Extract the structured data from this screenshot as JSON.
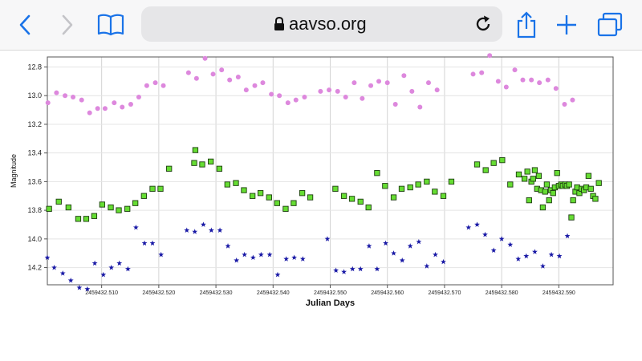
{
  "browser": {
    "url": "aavso.org",
    "icons": [
      "back-icon",
      "forward-icon",
      "bookmarks-icon",
      "lock-icon",
      "reload-icon",
      "share-icon",
      "new-tab-icon",
      "tabs-icon"
    ],
    "accent": "#1a73e8"
  },
  "chart_data": {
    "type": "scatter",
    "xlabel": "Julian Days",
    "ylabel": "Magnitude",
    "xlim": [
      2459432.5005,
      2459432.5995
    ],
    "ylim": [
      14.32,
      12.73
    ],
    "y_inverted": true,
    "grid": true,
    "x_ticks": [
      "2459432.510",
      "2459432.520",
      "2459432.530",
      "2459432.540",
      "2459432.550",
      "2459432.560",
      "2459432.570",
      "2459432.580",
      "2459432.590"
    ],
    "x_tick_values": [
      2459432.51,
      2459432.52,
      2459432.53,
      2459432.54,
      2459432.55,
      2459432.56,
      2459432.57,
      2459432.58,
      2459432.59
    ],
    "y_ticks": [
      "12.8",
      "13.0",
      "13.2",
      "13.4",
      "13.6",
      "13.8",
      "14.0",
      "14.2"
    ],
    "y_tick_values": [
      12.8,
      13.0,
      13.2,
      13.4,
      13.6,
      13.8,
      14.0,
      14.2
    ],
    "series": [
      {
        "marker": "circle",
        "color": "#dd88dd",
        "points": [
          [
            2459432.5006,
            13.05
          ],
          [
            2459432.5021,
            12.98
          ],
          [
            2459432.5036,
            13.0
          ],
          [
            2459432.505,
            13.01
          ],
          [
            2459432.5065,
            13.03
          ],
          [
            2459432.5079,
            13.12
          ],
          [
            2459432.5093,
            13.09
          ],
          [
            2459432.5106,
            13.09
          ],
          [
            2459432.5122,
            13.05
          ],
          [
            2459432.5136,
            13.08
          ],
          [
            2459432.5151,
            13.06
          ],
          [
            2459432.5165,
            13.01
          ],
          [
            2459432.5179,
            12.93
          ],
          [
            2459432.5194,
            12.91
          ],
          [
            2459432.5208,
            12.93
          ],
          [
            2459432.5252,
            12.84
          ],
          [
            2459432.5266,
            12.88
          ],
          [
            2459432.5281,
            12.74
          ],
          [
            2459432.5295,
            12.85
          ],
          [
            2459432.531,
            12.82
          ],
          [
            2459432.5324,
            12.89
          ],
          [
            2459432.5339,
            12.87
          ],
          [
            2459432.5353,
            12.96
          ],
          [
            2459432.5368,
            12.93
          ],
          [
            2459432.5382,
            12.91
          ],
          [
            2459432.5397,
            12.99
          ],
          [
            2459432.5411,
            13.0
          ],
          [
            2459432.5426,
            13.05
          ],
          [
            2459432.544,
            13.03
          ],
          [
            2459432.5455,
            13.01
          ],
          [
            2459432.5483,
            12.97
          ],
          [
            2459432.5498,
            12.96
          ],
          [
            2459432.5513,
            12.97
          ],
          [
            2459432.5527,
            13.01
          ],
          [
            2459432.5542,
            12.91
          ],
          [
            2459432.5556,
            13.02
          ],
          [
            2459432.5571,
            12.93
          ],
          [
            2459432.5585,
            12.9
          ],
          [
            2459432.56,
            12.91
          ],
          [
            2459432.5614,
            13.06
          ],
          [
            2459432.5629,
            12.86
          ],
          [
            2459432.5643,
            12.97
          ],
          [
            2459432.5657,
            13.08
          ],
          [
            2459432.5672,
            12.91
          ],
          [
            2459432.5687,
            12.96
          ],
          [
            2459432.575,
            12.85
          ],
          [
            2459432.5765,
            12.84
          ],
          [
            2459432.5779,
            12.72
          ],
          [
            2459432.5794,
            12.9
          ],
          [
            2459432.5808,
            12.94
          ],
          [
            2459432.5823,
            12.82
          ],
          [
            2459432.5837,
            12.89
          ],
          [
            2459432.5852,
            12.89
          ],
          [
            2459432.5866,
            12.91
          ],
          [
            2459432.5881,
            12.89
          ],
          [
            2459432.5895,
            12.95
          ],
          [
            2459432.591,
            13.06
          ],
          [
            2459432.5924,
            13.03
          ]
        ]
      },
      {
        "marker": "square",
        "color": "#66dd33",
        "points": [
          [
            2459432.5008,
            13.79
          ],
          [
            2459432.5025,
            13.74
          ],
          [
            2459432.5042,
            13.78
          ],
          [
            2459432.5059,
            13.86
          ],
          [
            2459432.5073,
            13.86
          ],
          [
            2459432.5087,
            13.84
          ],
          [
            2459432.5101,
            13.76
          ],
          [
            2459432.5116,
            13.78
          ],
          [
            2459432.513,
            13.8
          ],
          [
            2459432.5145,
            13.79
          ],
          [
            2459432.5159,
            13.75
          ],
          [
            2459432.5174,
            13.7
          ],
          [
            2459432.5189,
            13.65
          ],
          [
            2459432.5203,
            13.65
          ],
          [
            2459432.5218,
            13.51
          ],
          [
            2459432.5262,
            13.47
          ],
          [
            2459432.5264,
            13.38
          ],
          [
            2459432.5276,
            13.48
          ],
          [
            2459432.5291,
            13.46
          ],
          [
            2459432.5306,
            13.51
          ],
          [
            2459432.532,
            13.62
          ],
          [
            2459432.5335,
            13.61
          ],
          [
            2459432.5349,
            13.66
          ],
          [
            2459432.5364,
            13.7
          ],
          [
            2459432.5378,
            13.68
          ],
          [
            2459432.5393,
            13.71
          ],
          [
            2459432.5407,
            13.75
          ],
          [
            2459432.5422,
            13.79
          ],
          [
            2459432.5436,
            13.75
          ],
          [
            2459432.5451,
            13.68
          ],
          [
            2459432.5465,
            13.71
          ],
          [
            2459432.5509,
            13.65
          ],
          [
            2459432.5524,
            13.7
          ],
          [
            2459432.5538,
            13.72
          ],
          [
            2459432.5553,
            13.74
          ],
          [
            2459432.5567,
            13.78
          ],
          [
            2459432.5582,
            13.54
          ],
          [
            2459432.5596,
            13.63
          ],
          [
            2459432.5611,
            13.71
          ],
          [
            2459432.5625,
            13.65
          ],
          [
            2459432.564,
            13.64
          ],
          [
            2459432.5654,
            13.62
          ],
          [
            2459432.5669,
            13.6
          ],
          [
            2459432.5683,
            13.67
          ],
          [
            2459432.5698,
            13.7
          ],
          [
            2459432.5712,
            13.6
          ],
          [
            2459432.5757,
            13.48
          ],
          [
            2459432.5772,
            13.52
          ],
          [
            2459432.5786,
            13.47
          ],
          [
            2459432.5801,
            13.45
          ],
          [
            2459432.5815,
            13.62
          ],
          [
            2459432.583,
            13.55
          ],
          [
            2459432.584,
            13.58
          ],
          [
            2459432.5845,
            13.53
          ],
          [
            2459432.5848,
            13.73
          ],
          [
            2459432.5852,
            13.6
          ],
          [
            2459432.5855,
            13.58
          ],
          [
            2459432.5858,
            13.52
          ],
          [
            2459432.5862,
            13.65
          ],
          [
            2459432.5865,
            13.56
          ],
          [
            2459432.5869,
            13.66
          ],
          [
            2459432.5872,
            13.78
          ],
          [
            2459432.5876,
            13.67
          ],
          [
            2459432.5879,
            13.62
          ],
          [
            2459432.5883,
            13.73
          ],
          [
            2459432.5886,
            13.66
          ],
          [
            2459432.589,
            13.68
          ],
          [
            2459432.5893,
            13.64
          ],
          [
            2459432.5897,
            13.54
          ],
          [
            2459432.59,
            13.63
          ],
          [
            2459432.5904,
            13.62
          ],
          [
            2459432.5907,
            13.63
          ],
          [
            2459432.5911,
            13.62
          ],
          [
            2459432.5914,
            13.63
          ],
          [
            2459432.5918,
            13.62
          ],
          [
            2459432.5922,
            13.85
          ],
          [
            2459432.5925,
            13.73
          ],
          [
            2459432.5929,
            13.67
          ],
          [
            2459432.5932,
            13.64
          ],
          [
            2459432.5936,
            13.68
          ],
          [
            2459432.594,
            13.65
          ],
          [
            2459432.5944,
            13.66
          ],
          [
            2459432.5948,
            13.64
          ],
          [
            2459432.5952,
            13.56
          ],
          [
            2459432.5956,
            13.65
          ],
          [
            2459432.596,
            13.7
          ],
          [
            2459432.5964,
            13.72
          ],
          [
            2459432.597,
            13.61
          ]
        ]
      },
      {
        "marker": "star",
        "color": "#1a1aa6",
        "points": [
          [
            2459432.5005,
            14.13
          ],
          [
            2459432.5017,
            14.2
          ],
          [
            2459432.5032,
            14.24
          ],
          [
            2459432.5046,
            14.29
          ],
          [
            2459432.5061,
            14.34
          ],
          [
            2459432.5075,
            14.35
          ],
          [
            2459432.5088,
            14.17
          ],
          [
            2459432.5103,
            14.25
          ],
          [
            2459432.5117,
            14.2
          ],
          [
            2459432.5131,
            14.17
          ],
          [
            2459432.5146,
            14.21
          ],
          [
            2459432.516,
            13.92
          ],
          [
            2459432.5175,
            14.03
          ],
          [
            2459432.5189,
            14.03
          ],
          [
            2459432.5204,
            14.11
          ],
          [
            2459432.5249,
            13.94
          ],
          [
            2459432.5263,
            13.95
          ],
          [
            2459432.5278,
            13.9
          ],
          [
            2459432.5292,
            13.94
          ],
          [
            2459432.5307,
            13.94
          ],
          [
            2459432.5321,
            14.05
          ],
          [
            2459432.5336,
            14.15
          ],
          [
            2459432.535,
            14.11
          ],
          [
            2459432.5365,
            14.13
          ],
          [
            2459432.5379,
            14.11
          ],
          [
            2459432.5394,
            14.11
          ],
          [
            2459432.5408,
            14.25
          ],
          [
            2459432.5423,
            14.14
          ],
          [
            2459432.5437,
            14.13
          ],
          [
            2459432.5452,
            14.14
          ],
          [
            2459432.5495,
            14.0
          ],
          [
            2459432.551,
            14.22
          ],
          [
            2459432.5524,
            14.23
          ],
          [
            2459432.5539,
            14.21
          ],
          [
            2459432.5553,
            14.21
          ],
          [
            2459432.5568,
            14.05
          ],
          [
            2459432.5582,
            14.21
          ],
          [
            2459432.5597,
            14.03
          ],
          [
            2459432.5611,
            14.1
          ],
          [
            2459432.5626,
            14.15
          ],
          [
            2459432.564,
            14.05
          ],
          [
            2459432.5655,
            14.02
          ],
          [
            2459432.5669,
            14.19
          ],
          [
            2459432.5684,
            14.11
          ],
          [
            2459432.5698,
            14.16
          ],
          [
            2459432.5742,
            13.92
          ],
          [
            2459432.5757,
            13.9
          ],
          [
            2459432.5771,
            13.97
          ],
          [
            2459432.5786,
            14.08
          ],
          [
            2459432.58,
            14.0
          ],
          [
            2459432.5815,
            14.04
          ],
          [
            2459432.5829,
            14.14
          ],
          [
            2459432.5843,
            14.12
          ],
          [
            2459432.5858,
            14.09
          ],
          [
            2459432.5872,
            14.19
          ],
          [
            2459432.5887,
            14.11
          ],
          [
            2459432.5901,
            14.12
          ],
          [
            2459432.5915,
            13.98
          ]
        ]
      }
    ]
  }
}
